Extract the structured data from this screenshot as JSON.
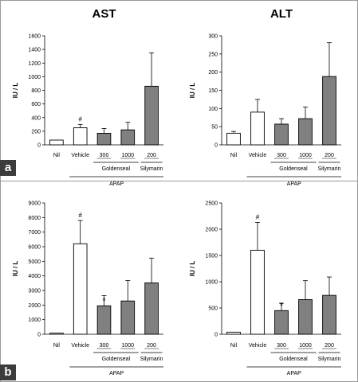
{
  "panels": [
    {
      "label": "a"
    },
    {
      "label": "b"
    }
  ],
  "chart_data": [
    {
      "type": "bar",
      "panel": "a",
      "title": "AST",
      "ylabel": "IU / L",
      "ylim": [
        0,
        1600
      ],
      "yticks": [
        0,
        200,
        400,
        600,
        800,
        1000,
        1200,
        1400,
        1600
      ],
      "categories": [
        "Nil",
        "Vehicle",
        "300",
        "1000",
        "200"
      ],
      "values": [
        70,
        250,
        170,
        220,
        860
      ],
      "errors": [
        0,
        50,
        70,
        110,
        490
      ],
      "fills": [
        "#ffffff",
        "#ffffff",
        "#808080",
        "#808080",
        "#808080"
      ],
      "annotations": [
        "",
        "#",
        "",
        "",
        ""
      ],
      "groups": [
        "Goldenseal",
        "Silymarin"
      ],
      "treatment": "APAP"
    },
    {
      "type": "bar",
      "panel": "a",
      "title": "ALT",
      "ylabel": "IU / L",
      "ylim": [
        0,
        300
      ],
      "yticks": [
        0,
        50,
        100,
        150,
        200,
        250,
        300
      ],
      "categories": [
        "Nil",
        "Vehicle",
        "300",
        "1000",
        "200"
      ],
      "values": [
        32,
        90,
        57,
        72,
        188
      ],
      "errors": [
        5,
        35,
        15,
        32,
        93
      ],
      "fills": [
        "#ffffff",
        "#ffffff",
        "#808080",
        "#808080",
        "#808080"
      ],
      "annotations": [
        "",
        "",
        "",
        "",
        ""
      ],
      "groups": [
        "Goldenseal",
        "Silymarin"
      ],
      "treatment": "APAP"
    },
    {
      "type": "bar",
      "panel": "b",
      "title": "",
      "ylabel": "IU / L",
      "ylim": [
        0,
        9000
      ],
      "yticks": [
        0,
        1000,
        2000,
        3000,
        4000,
        5000,
        6000,
        7000,
        8000,
        9000
      ],
      "categories": [
        "Nil",
        "Vehicle",
        "300",
        "1000",
        "200"
      ],
      "values": [
        80,
        6200,
        1950,
        2280,
        3520
      ],
      "errors": [
        0,
        1600,
        700,
        1400,
        1700
      ],
      "fills": [
        "#ffffff",
        "#ffffff",
        "#808080",
        "#808080",
        "#808080"
      ],
      "annotations": [
        "",
        "#",
        "*",
        "",
        ""
      ],
      "groups": [
        "Goldenseal",
        "Silymarin"
      ],
      "treatment": "APAP"
    },
    {
      "type": "bar",
      "panel": "b",
      "title": "",
      "ylabel": "IU / L",
      "ylim": [
        0,
        2500
      ],
      "yticks": [
        0,
        500,
        1000,
        1500,
        2000,
        2500
      ],
      "categories": [
        "Nil",
        "Vehicle",
        "300",
        "1000",
        "200"
      ],
      "values": [
        40,
        1600,
        450,
        660,
        740
      ],
      "errors": [
        0,
        530,
        140,
        360,
        350
      ],
      "fills": [
        "#ffffff",
        "#ffffff",
        "#808080",
        "#808080",
        "#808080"
      ],
      "annotations": [
        "",
        "#",
        "*",
        "",
        ""
      ],
      "groups": [
        "Goldenseal",
        "Silymarin"
      ],
      "treatment": "APAP"
    }
  ]
}
